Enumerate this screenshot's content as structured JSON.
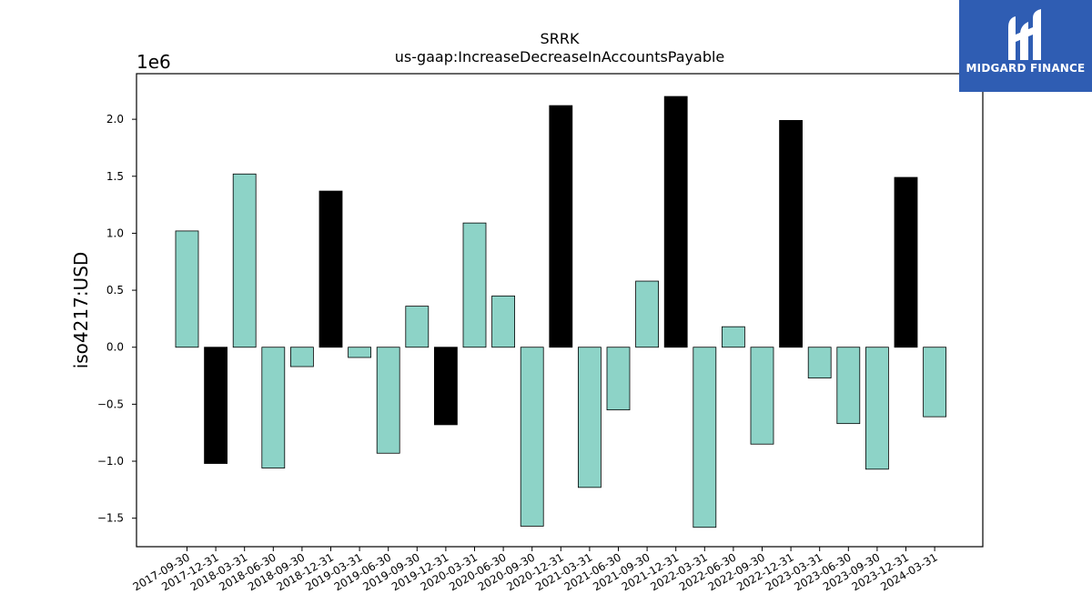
{
  "brand": {
    "name": "MIDGARD FINANCE",
    "logo_icon": "midgard-m-logo-icon",
    "background_color": "#2f5db3"
  },
  "chart_data": {
    "type": "bar",
    "title": "SRRK",
    "subtitle": "us-gaap:IncreaseDecreaseInAccountsPayable",
    "xlabel": "",
    "ylabel": "iso4217:USD",
    "scale_label": "1e6",
    "ylim": [
      -1.75,
      2.4
    ],
    "yticks": [
      -1.5,
      -1.0,
      -0.5,
      0.0,
      0.5,
      1.0,
      1.5,
      2.0
    ],
    "ytick_labels": [
      "−1.5",
      "−1.0",
      "−0.5",
      "0.0",
      "0.5",
      "1.0",
      "1.5",
      "2.0"
    ],
    "grid": false,
    "colors": {
      "regular": "#8dd3c7",
      "q4": "#000000",
      "edge": "#000000"
    },
    "categories": [
      "2017-09-30",
      "2017-12-31",
      "2018-03-31",
      "2018-06-30",
      "2018-09-30",
      "2018-12-31",
      "2019-03-31",
      "2019-06-30",
      "2019-09-30",
      "2019-12-31",
      "2020-03-31",
      "2020-06-30",
      "2020-09-30",
      "2020-12-31",
      "2021-03-31",
      "2021-06-30",
      "2021-09-30",
      "2021-12-31",
      "2022-03-31",
      "2022-06-30",
      "2022-09-30",
      "2022-12-31",
      "2023-03-31",
      "2023-06-30",
      "2023-09-30",
      "2023-12-31",
      "2024-03-31"
    ],
    "values": [
      1.02,
      -1.02,
      1.52,
      -1.06,
      -0.17,
      1.37,
      -0.09,
      -0.93,
      0.36,
      -0.68,
      1.09,
      0.45,
      -1.57,
      2.12,
      -1.23,
      -0.55,
      0.58,
      2.2,
      -1.58,
      0.18,
      -0.85,
      1.99,
      -0.27,
      -0.67,
      -1.07,
      1.49,
      -0.61
    ]
  }
}
